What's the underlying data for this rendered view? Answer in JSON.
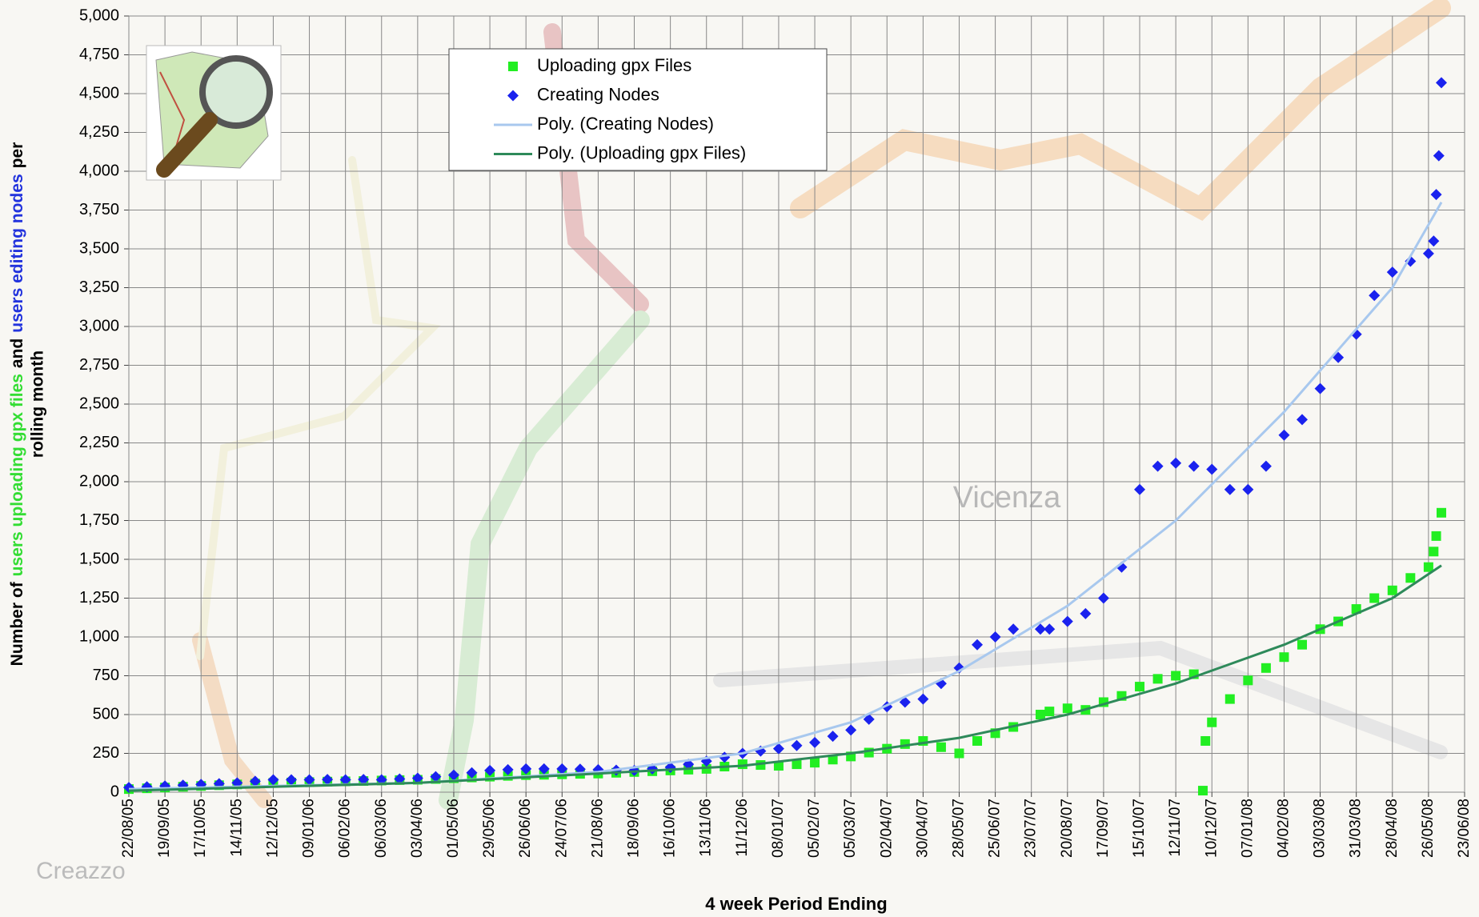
{
  "chart_data": {
    "type": "scatter",
    "ylabel_line1": [
      "Number of",
      "users uploading gpx files",
      "and",
      "users editing nodes",
      "per"
    ],
    "ylabel_line1_colors": [
      "#000000",
      "#33dd33",
      "#000000",
      "#2233dd",
      "#000000"
    ],
    "ylabel_line2": "rolling month",
    "xlabel": "4 week Period Ending",
    "map_labels": [
      "Vicenza",
      "Creazzo"
    ],
    "grid": true,
    "legend_position": "top",
    "xlim": [
      "22/08/05",
      "23/06/08"
    ],
    "xticks": [
      "22/08/05",
      "19/09/05",
      "17/10/05",
      "14/11/05",
      "12/12/05",
      "09/01/06",
      "06/02/06",
      "06/03/06",
      "03/04/06",
      "01/05/06",
      "29/05/06",
      "26/06/06",
      "24/07/06",
      "21/08/06",
      "18/09/06",
      "16/10/06",
      "13/11/06",
      "11/12/06",
      "08/01/07",
      "05/02/07",
      "05/03/07",
      "02/04/07",
      "30/04/07",
      "28/05/07",
      "25/06/07",
      "23/07/07",
      "20/08/07",
      "17/09/07",
      "15/10/07",
      "12/11/07",
      "10/12/07",
      "07/01/08",
      "04/02/08",
      "03/03/08",
      "31/03/08",
      "28/04/08",
      "26/05/08",
      "23/06/08"
    ],
    "ylim": [
      0,
      5000
    ],
    "yticks": [
      0,
      250,
      500,
      750,
      {
        "value": 1000,
        "label": "1,000"
      },
      {
        "value": 1250,
        "label": "1,250"
      },
      {
        "value": 1500,
        "label": "1,500"
      },
      {
        "value": 1750,
        "label": "1,750"
      },
      {
        "value": 2000,
        "label": "2,000"
      },
      {
        "value": 2250,
        "label": "2,250"
      },
      {
        "value": 2500,
        "label": "2,500"
      },
      {
        "value": 2750,
        "label": "2,750"
      },
      {
        "value": 3000,
        "label": "3,000"
      },
      {
        "value": 3250,
        "label": "3,250"
      },
      {
        "value": 3500,
        "label": "3,500"
      },
      {
        "value": 3750,
        "label": "3,750"
      },
      {
        "value": 4000,
        "label": "4,000"
      },
      {
        "value": 4250,
        "label": "4,250"
      },
      {
        "value": 4500,
        "label": "4,500"
      },
      {
        "value": 4750,
        "label": "4,750"
      },
      {
        "value": 5000,
        "label": "5,000"
      }
    ],
    "series": [
      {
        "name": "Uploading gpx Files",
        "type": "scatter",
        "marker": "square",
        "color": "#22ee22",
        "x": [
          "22/08/05",
          "05/09/05",
          "19/09/05",
          "03/10/05",
          "17/10/05",
          "31/10/05",
          "14/11/05",
          "28/11/05",
          "12/12/05",
          "26/12/05",
          "09/01/06",
          "23/01/06",
          "06/02/06",
          "20/02/06",
          "06/03/06",
          "20/03/06",
          "03/04/06",
          "17/04/06",
          "01/05/06",
          "15/05/06",
          "29/05/06",
          "12/06/06",
          "26/06/06",
          "10/07/06",
          "24/07/06",
          "07/08/06",
          "21/08/06",
          "04/09/06",
          "18/09/06",
          "02/10/06",
          "16/10/06",
          "30/10/06",
          "13/11/06",
          "27/11/06",
          "11/12/06",
          "25/12/06",
          "08/01/07",
          "22/01/07",
          "05/02/07",
          "19/02/07",
          "05/03/07",
          "19/03/07",
          "02/04/07",
          "16/04/07",
          "30/04/07",
          "14/05/07",
          "28/05/07",
          "11/06/07",
          "25/06/07",
          "09/07/07",
          "30/07/07",
          "06/08/07",
          "20/08/07",
          "03/09/07",
          "17/09/07",
          "01/10/07",
          "15/10/07",
          "29/10/07",
          "12/11/07",
          "26/11/07",
          "03/12/07",
          "05/12/07",
          "10/12/07",
          "24/12/07",
          "07/01/08",
          "21/01/08",
          "04/02/08",
          "18/02/08",
          "03/03/08",
          "17/03/08",
          "31/03/08",
          "14/04/08",
          "28/04/08",
          "12/05/08",
          "26/05/08",
          "30/05/08",
          "01/06/08",
          "05/06/08"
        ],
        "values": [
          20,
          25,
          30,
          35,
          40,
          45,
          50,
          55,
          60,
          62,
          65,
          68,
          70,
          72,
          75,
          78,
          80,
          85,
          90,
          95,
          100,
          105,
          110,
          112,
          115,
          118,
          120,
          125,
          130,
          135,
          140,
          145,
          150,
          165,
          180,
          175,
          170,
          180,
          190,
          210,
          230,
          255,
          280,
          310,
          330,
          290,
          250,
          330,
          380,
          420,
          500,
          520,
          540,
          530,
          580,
          620,
          680,
          730,
          750,
          760,
          10,
          330,
          450,
          600,
          720,
          800,
          870,
          950,
          1050,
          1100,
          1180,
          1250,
          1300,
          1380,
          1450,
          1550,
          1650,
          1800
        ]
      },
      {
        "name": "Creating Nodes",
        "type": "scatter",
        "marker": "diamond",
        "color": "#1a22ee",
        "x": [
          "22/08/05",
          "05/09/05",
          "19/09/05",
          "03/10/05",
          "17/10/05",
          "31/10/05",
          "14/11/05",
          "28/11/05",
          "12/12/05",
          "26/12/05",
          "09/01/06",
          "23/01/06",
          "06/02/06",
          "20/02/06",
          "06/03/06",
          "20/03/06",
          "03/04/06",
          "17/04/06",
          "01/05/06",
          "15/05/06",
          "29/05/06",
          "12/06/06",
          "26/06/06",
          "10/07/06",
          "24/07/06",
          "07/08/06",
          "21/08/06",
          "04/09/06",
          "18/09/06",
          "02/10/06",
          "16/10/06",
          "30/10/06",
          "13/11/06",
          "27/11/06",
          "11/12/06",
          "25/12/06",
          "08/01/07",
          "22/01/07",
          "05/02/07",
          "19/02/07",
          "05/03/07",
          "19/03/07",
          "02/04/07",
          "16/04/07",
          "30/04/07",
          "14/05/07",
          "28/05/07",
          "11/06/07",
          "25/06/07",
          "09/07/07",
          "30/07/07",
          "06/08/07",
          "20/08/07",
          "03/09/07",
          "17/09/07",
          "01/10/07",
          "15/10/07",
          "29/10/07",
          "12/11/07",
          "26/11/07",
          "10/12/07",
          "24/12/07",
          "07/01/08",
          "21/01/08",
          "04/02/08",
          "18/02/08",
          "03/03/08",
          "17/03/08",
          "31/03/08",
          "14/04/08",
          "28/04/08",
          "12/05/08",
          "26/05/08",
          "30/05/08",
          "01/06/08",
          "03/06/08",
          "05/06/08"
        ],
        "values": [
          30,
          35,
          40,
          45,
          50,
          55,
          60,
          70,
          80,
          80,
          80,
          82,
          80,
          82,
          80,
          85,
          90,
          100,
          110,
          125,
          140,
          145,
          150,
          150,
          150,
          148,
          145,
          142,
          140,
          150,
          160,
          180,
          200,
          225,
          250,
          265,
          280,
          300,
          320,
          360,
          400,
          470,
          550,
          580,
          600,
          700,
          800,
          950,
          1000,
          1050,
          1050,
          1050,
          1100,
          1150,
          1250,
          1450,
          1950,
          2100,
          2120,
          2100,
          2080,
          1950,
          1950,
          2100,
          2300,
          2400,
          2600,
          2800,
          2950,
          3200,
          3350,
          3420,
          3470,
          3550,
          3850,
          4100,
          4570
        ]
      },
      {
        "name": "Poly. (Creating Nodes)",
        "type": "line",
        "color": "#a8c8ee",
        "x": [
          "22/08/05",
          "03/04/06",
          "21/08/06",
          "11/12/06",
          "05/03/07",
          "28/05/07",
          "20/08/07",
          "12/11/07",
          "04/02/08",
          "28/04/08",
          "05/06/08"
        ],
        "values": [
          20,
          60,
          130,
          250,
          450,
          780,
          1200,
          1750,
          2450,
          3250,
          3800
        ]
      },
      {
        "name": "Poly. (Uploading gpx Files)",
        "type": "line",
        "color": "#2e8a5a",
        "x": [
          "22/08/05",
          "03/04/06",
          "21/08/06",
          "11/12/06",
          "05/03/07",
          "28/05/07",
          "20/08/07",
          "12/11/07",
          "04/02/08",
          "28/04/08",
          "05/06/08"
        ],
        "values": [
          10,
          60,
          120,
          170,
          250,
          350,
          500,
          700,
          950,
          1250,
          1460
        ]
      }
    ]
  }
}
